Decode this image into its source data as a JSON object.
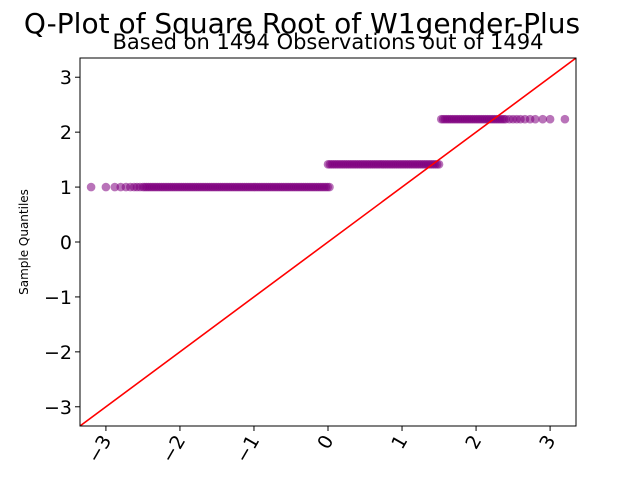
{
  "chart_data": {
    "type": "scatter",
    "title": "Q-Plot of Square Root of W1gender-Plus",
    "subtitle": "Based on 1494 Observations out of 1494",
    "xlabel": "",
    "ylabel": "Sample Quantiles",
    "xlim": [
      -3.35,
      3.35
    ],
    "ylim": [
      -3.35,
      3.35
    ],
    "x_ticks": [
      -3,
      -2,
      -1,
      0,
      1,
      2,
      3
    ],
    "y_ticks": [
      -3,
      -2,
      -1,
      0,
      1,
      2,
      3
    ],
    "x_tick_labels": [
      "−3",
      "−2",
      "−1",
      "0",
      "1",
      "2",
      "3"
    ],
    "y_tick_labels": [
      "−3",
      "−2",
      "−1",
      "0",
      "1",
      "2",
      "3"
    ],
    "reference_line": {
      "slope": 1,
      "intercept": 0,
      "color": "#ff0000"
    },
    "point_color": "#800080",
    "series": [
      {
        "y": 1.0,
        "x_dense_range": [
          -2.5,
          0.02
        ],
        "x_sparse": [
          -3.2,
          -3.0,
          -2.88,
          -2.8,
          -2.73,
          -2.67,
          -2.62,
          -2.58,
          -2.54
        ]
      },
      {
        "y": 1.414,
        "x_dense_range": [
          0.0,
          1.5
        ],
        "x_sparse": []
      },
      {
        "y": 2.236,
        "x_dense_range": [
          1.53,
          2.4
        ],
        "x_sparse": [
          2.45,
          2.5,
          2.55,
          2.6,
          2.66,
          2.73,
          2.8,
          2.9,
          3.0,
          3.2
        ]
      }
    ],
    "grid": false,
    "legend": "none"
  }
}
